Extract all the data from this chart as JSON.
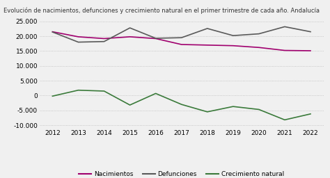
{
  "title": "Evolución de nacimientos, defunciones y crecimiento natural en el primer trimestre de cada año. Andalucía",
  "years": [
    2012,
    2013,
    2014,
    2015,
    2016,
    2017,
    2018,
    2019,
    2020,
    2021,
    2022
  ],
  "nacimientos": [
    21500,
    19800,
    19200,
    19800,
    19200,
    17200,
    17000,
    16800,
    16200,
    15200,
    15100
  ],
  "defunciones": [
    21400,
    18000,
    18200,
    22800,
    19300,
    19500,
    22600,
    20200,
    20800,
    23200,
    21500
  ],
  "crecimiento": [
    -200,
    1800,
    1500,
    -3200,
    700,
    -3000,
    -5500,
    -3700,
    -4700,
    -8200,
    -6200
  ],
  "nacimientos_color": "#a0006e",
  "defunciones_color": "#595959",
  "crecimiento_color": "#3a7a3a",
  "background_color": "#f0f0f0",
  "ylim": [
    -11000,
    25000
  ],
  "yticks": [
    -10000,
    -5000,
    0,
    5000,
    10000,
    15000,
    20000,
    25000
  ],
  "title_fontsize": 6.0,
  "legend_fontsize": 6.5,
  "tick_fontsize": 6.5
}
